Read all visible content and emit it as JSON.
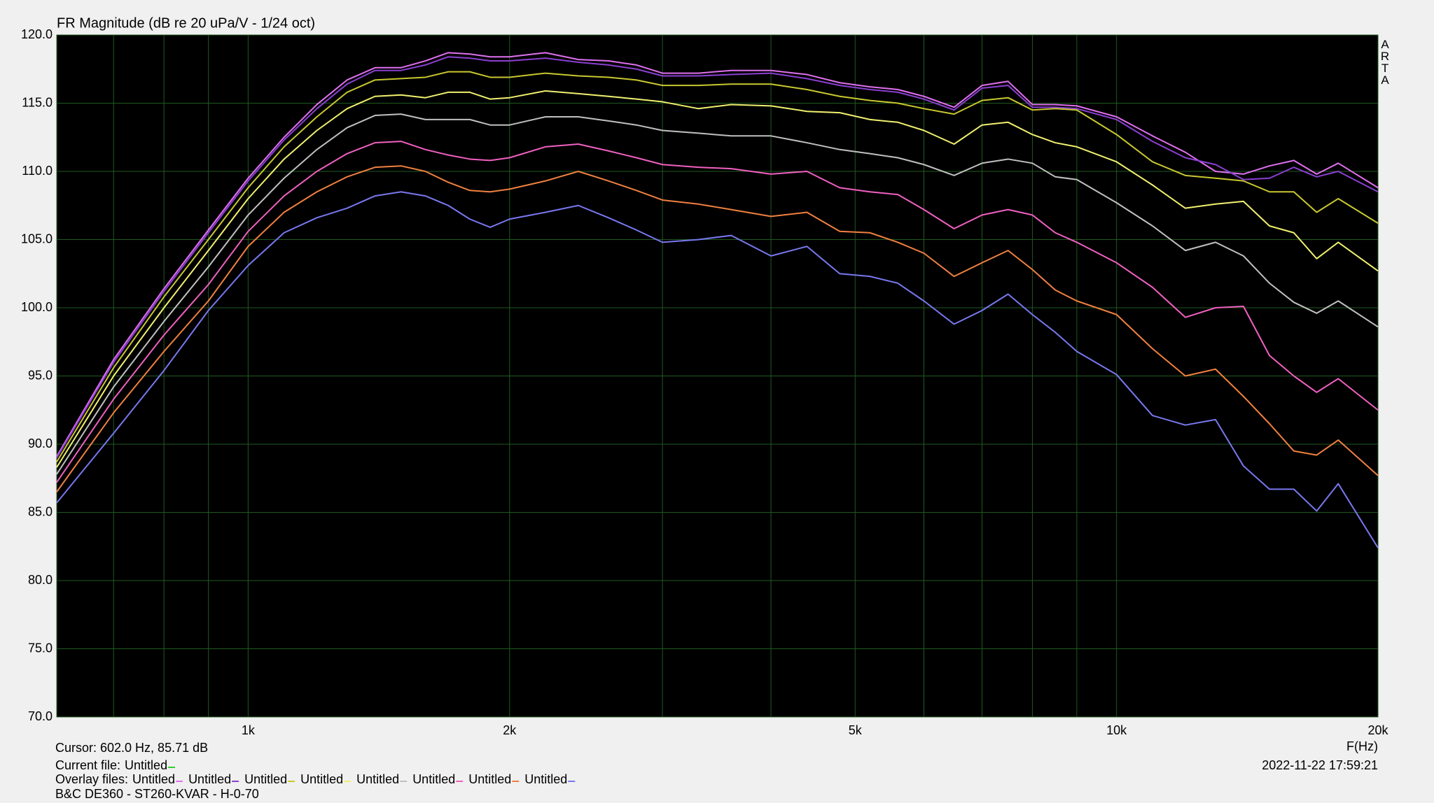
{
  "chart_data": {
    "type": "line",
    "title": "FR Magnitude (dB re 20 uPa/V - 1/24 oct)",
    "brand": "ARTA",
    "x_label": "F(Hz)",
    "log_x": true,
    "grid": true,
    "xlim": [
      602,
      20000
    ],
    "ylim": [
      70,
      120
    ],
    "xticks": [
      {
        "value": 1000,
        "label": "1k"
      },
      {
        "value": 2000,
        "label": "2k"
      },
      {
        "value": 5000,
        "label": "5k"
      },
      {
        "value": 10000,
        "label": "10k"
      },
      {
        "value": 20000,
        "label": "20k"
      }
    ],
    "xminor": [
      700,
      800,
      900,
      3000,
      4000,
      6000,
      7000,
      8000,
      9000
    ],
    "yticks": [
      {
        "value": 70,
        "label": "70.0"
      },
      {
        "value": 75,
        "label": "75.0"
      },
      {
        "value": 80,
        "label": "80.0"
      },
      {
        "value": 85,
        "label": "85.0"
      },
      {
        "value": 90,
        "label": "90.0"
      },
      {
        "value": 95,
        "label": "95.0"
      },
      {
        "value": 100,
        "label": "100.0"
      },
      {
        "value": 105,
        "label": "105.0"
      },
      {
        "value": 110,
        "label": "110.0"
      },
      {
        "value": 115,
        "label": "115.0"
      },
      {
        "value": 120,
        "label": "120.0"
      }
    ],
    "cursor_text": "Cursor: 602.0 Hz, 85.71 dB",
    "current_file_label": "Current file:",
    "current_file": {
      "name": "Untitled",
      "color": "#30d030"
    },
    "overlay_label": "Overlay files:",
    "timestamp": "2022-11-22  17:59:21",
    "footer": "B&C DE360 - ST260-KVAR - H-0-70",
    "x": [
      602,
      700,
      800,
      900,
      1000,
      1100,
      1200,
      1300,
      1400,
      1500,
      1600,
      1700,
      1800,
      1900,
      2000,
      2200,
      2400,
      2600,
      2800,
      3000,
      3300,
      3600,
      4000,
      4400,
      4800,
      5200,
      5600,
      6000,
      6500,
      7000,
      7500,
      8000,
      8500,
      9000,
      10000,
      11000,
      12000,
      13000,
      14000,
      15000,
      16000,
      17000,
      18000,
      20000
    ],
    "series": [
      {
        "name": "Untitled",
        "color": "#e070f0",
        "values": [
          89.1,
          96.2,
          101.4,
          105.7,
          109.5,
          112.5,
          114.9,
          116.7,
          117.6,
          117.6,
          118.1,
          118.7,
          118.6,
          118.4,
          118.4,
          118.7,
          118.2,
          118.1,
          117.8,
          117.2,
          117.2,
          117.4,
          117.4,
          117.1,
          116.5,
          116.2,
          116.0,
          115.5,
          114.7,
          116.3,
          116.6,
          114.9,
          114.9,
          114.8,
          114.0,
          112.6,
          111.4,
          110.0,
          109.8,
          110.4,
          110.8,
          109.8,
          110.6,
          108.8
        ]
      },
      {
        "name": "Untitled",
        "color": "#8a3fd0",
        "values": [
          89.0,
          96.0,
          101.2,
          105.5,
          109.3,
          112.3,
          114.6,
          116.4,
          117.4,
          117.4,
          117.8,
          118.4,
          118.3,
          118.1,
          118.1,
          118.3,
          118.0,
          117.8,
          117.5,
          117.0,
          117.0,
          117.1,
          117.2,
          116.8,
          116.3,
          116.0,
          115.8,
          115.3,
          114.5,
          116.1,
          116.3,
          114.7,
          114.7,
          114.6,
          113.8,
          112.2,
          111.0,
          110.5,
          109.4,
          109.5,
          110.3,
          109.6,
          110.0,
          108.5
        ]
      },
      {
        "name": "Untitled",
        "color": "#c8c830",
        "values": [
          88.7,
          95.6,
          100.8,
          105.0,
          108.8,
          111.8,
          114.0,
          115.8,
          116.7,
          116.8,
          116.9,
          117.3,
          117.3,
          116.9,
          116.9,
          117.2,
          117.0,
          116.9,
          116.7,
          116.3,
          116.3,
          116.4,
          116.4,
          116.0,
          115.5,
          115.2,
          115.0,
          114.6,
          114.2,
          115.2,
          115.4,
          114.5,
          114.6,
          114.5,
          112.7,
          110.7,
          109.7,
          109.5,
          109.3,
          108.5,
          108.5,
          107.0,
          108.0,
          106.2
        ]
      },
      {
        "name": "Untitled",
        "color": "#f0f070",
        "values": [
          88.3,
          95.0,
          100.0,
          104.2,
          108.0,
          110.9,
          113.0,
          114.6,
          115.5,
          115.6,
          115.4,
          115.8,
          115.8,
          115.3,
          115.4,
          115.9,
          115.7,
          115.5,
          115.3,
          115.1,
          114.6,
          114.9,
          114.8,
          114.4,
          114.3,
          113.8,
          113.6,
          113.0,
          112.0,
          113.4,
          113.6,
          112.7,
          112.1,
          111.8,
          110.7,
          109.0,
          107.3,
          107.6,
          107.8,
          106.0,
          105.5,
          103.6,
          104.8,
          102.7
        ]
      },
      {
        "name": "Untitled",
        "color": "#c0c0c0",
        "values": [
          87.8,
          94.2,
          99.0,
          103.0,
          106.8,
          109.5,
          111.6,
          113.2,
          114.1,
          114.2,
          113.8,
          113.8,
          113.8,
          113.4,
          113.4,
          114.0,
          114.0,
          113.7,
          113.4,
          113.0,
          112.8,
          112.6,
          112.6,
          112.1,
          111.6,
          111.3,
          111.0,
          110.5,
          109.7,
          110.6,
          110.9,
          110.6,
          109.6,
          109.4,
          107.7,
          106.0,
          104.2,
          104.8,
          103.8,
          101.8,
          100.4,
          99.6,
          100.5,
          98.6
        ]
      },
      {
        "name": "Untitled",
        "color": "#f060c0",
        "values": [
          87.2,
          93.3,
          98.0,
          101.7,
          105.6,
          108.2,
          110.0,
          111.3,
          112.1,
          112.2,
          111.6,
          111.2,
          110.9,
          110.8,
          111.0,
          111.8,
          112.0,
          111.5,
          111.0,
          110.5,
          110.3,
          110.2,
          109.8,
          110.0,
          108.8,
          108.5,
          108.3,
          107.2,
          105.8,
          106.8,
          107.2,
          106.8,
          105.5,
          104.8,
          103.3,
          101.5,
          99.3,
          100.0,
          100.1,
          96.5,
          95.0,
          93.8,
          94.8,
          92.5
        ]
      },
      {
        "name": "Untitled",
        "color": "#f08040",
        "values": [
          86.5,
          92.3,
          96.8,
          100.5,
          104.5,
          107.0,
          108.5,
          109.6,
          110.3,
          110.4,
          110.0,
          109.2,
          108.6,
          108.5,
          108.7,
          109.3,
          110.0,
          109.3,
          108.6,
          107.9,
          107.6,
          107.2,
          106.7,
          107.0,
          105.6,
          105.5,
          104.8,
          104.0,
          102.3,
          103.3,
          104.2,
          102.8,
          101.3,
          100.5,
          99.5,
          97.0,
          95.0,
          95.5,
          93.5,
          91.5,
          89.5,
          89.2,
          90.3,
          87.7
        ]
      },
      {
        "name": "Untitled",
        "color": "#7878f0",
        "values": [
          85.7,
          90.8,
          95.4,
          99.8,
          103.1,
          105.5,
          106.6,
          107.3,
          108.2,
          108.5,
          108.2,
          107.5,
          106.5,
          105.9,
          106.5,
          107.0,
          107.5,
          106.6,
          105.7,
          104.8,
          105.0,
          105.3,
          103.8,
          104.5,
          102.5,
          102.3,
          101.8,
          100.5,
          98.8,
          99.8,
          101.0,
          99.5,
          98.2,
          96.8,
          95.1,
          92.1,
          91.4,
          91.8,
          88.4,
          86.7,
          86.7,
          85.1,
          87.1,
          82.4
        ]
      }
    ]
  }
}
